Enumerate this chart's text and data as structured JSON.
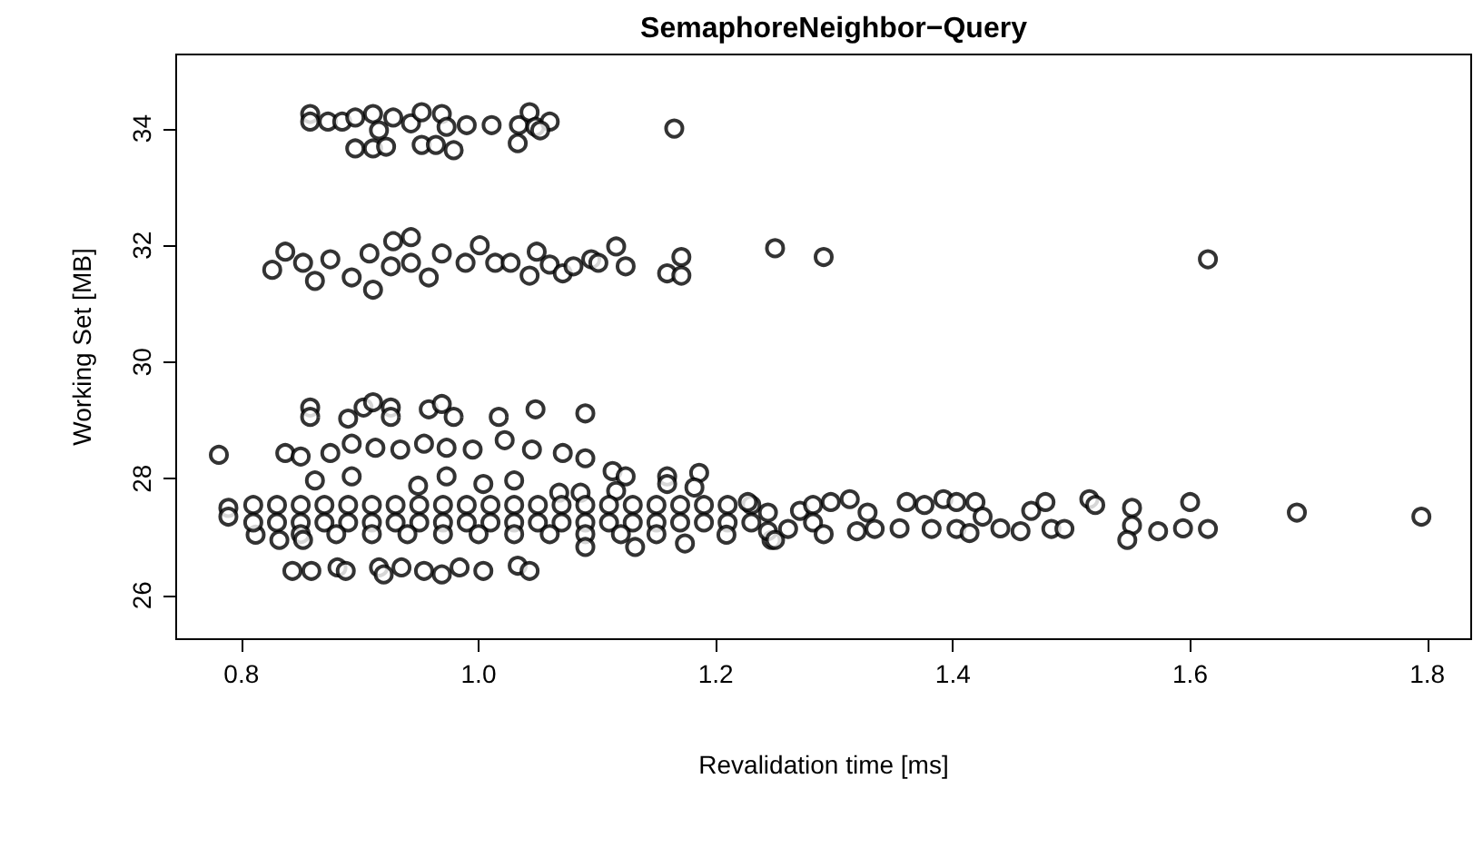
{
  "chart_data": {
    "type": "scatter",
    "title": "SemaphoreNeighbor−Query",
    "xlabel": "Revalidation time [ms]",
    "ylabel": "Working Set [MB]",
    "marker": "circle",
    "grid": false,
    "xlim": [
      0.745,
      1.837
    ],
    "ylim": [
      25.25,
      35.27
    ],
    "xticks": [
      0.8,
      {
        "value": 1,
        "label": "1.0"
      },
      1.2,
      1.4,
      1.6,
      1.8
    ],
    "yticks": [
      26,
      28,
      30,
      32,
      34
    ],
    "series": [
      {
        "color": "#000000",
        "x": [
          0.858,
          0.858,
          0.873,
          0.885,
          0.896,
          0.896,
          0.911,
          0.922,
          0.911,
          0.916,
          0.928,
          0.943,
          0.952,
          0.952,
          0.964,
          0.969,
          0.973,
          0.979,
          0.99,
          1.011,
          1.033,
          1.034,
          1.043,
          1.048,
          1.06,
          1.052,
          1.165,
          0.826,
          0.837,
          0.852,
          0.862,
          0.875,
          0.893,
          0.908,
          0.911,
          0.928,
          0.926,
          0.943,
          0.943,
          0.958,
          0.969,
          0.989,
          1.001,
          1.014,
          1.027,
          1.043,
          1.049,
          1.06,
          1.071,
          1.08,
          1.095,
          1.101,
          1.116,
          1.124,
          1.159,
          1.171,
          1.171,
          1.25,
          1.291,
          1.615,
          0.858,
          0.858,
          0.89,
          0.903,
          0.911,
          0.926,
          0.926,
          0.958,
          0.969,
          0.979,
          1.017,
          1.048,
          1.09,
          0.781,
          0.837,
          0.85,
          0.875,
          0.893,
          0.913,
          0.934,
          0.954,
          0.973,
          0.995,
          1.022,
          1.045,
          1.071,
          1.09,
          1.113,
          1.124,
          1.159,
          1.159,
          1.186,
          1.182,
          0.862,
          0.893,
          0.949,
          0.973,
          1.004,
          1.03,
          1.068,
          1.086,
          1.116,
          0.789,
          0.789,
          0.812,
          0.81,
          0.83,
          0.85,
          0.87,
          0.89,
          0.91,
          0.93,
          0.95,
          0.97,
          0.99,
          1.01,
          1.03,
          1.05,
          1.07,
          1.09,
          1.11,
          1.13,
          1.15,
          1.17,
          1.19,
          1.21,
          1.23,
          0.81,
          0.83,
          0.85,
          0.87,
          0.89,
          0.91,
          0.93,
          0.95,
          0.97,
          0.99,
          1.01,
          1.03,
          1.05,
          1.07,
          1.09,
          1.11,
          1.13,
          1.15,
          1.17,
          1.19,
          1.21,
          1.23,
          0.85,
          0.88,
          0.91,
          0.94,
          0.97,
          1.0,
          1.03,
          1.06,
          1.09,
          1.12,
          1.15,
          0.843,
          0.859,
          0.881,
          0.888,
          0.916,
          0.92,
          0.935,
          0.954,
          0.969,
          0.984,
          1.004,
          1.033,
          1.043,
          0.832,
          0.852,
          1.09,
          1.132,
          1.174,
          1.209,
          1.247,
          1.227,
          1.244,
          1.244,
          1.25,
          1.261,
          1.271,
          1.282,
          1.282,
          1.291,
          1.297,
          1.313,
          1.319,
          1.328,
          1.334,
          1.355,
          1.361,
          1.376,
          1.382,
          1.392,
          1.403,
          1.403,
          1.419,
          1.425,
          1.414,
          1.44,
          1.457,
          1.466,
          1.478,
          1.483,
          1.494,
          1.515,
          1.52,
          1.551,
          1.551,
          1.547,
          1.573,
          1.594,
          1.6,
          1.615,
          1.69,
          1.795
        ],
        "values": [
          34.25,
          34.12,
          34.12,
          34.12,
          34.19,
          33.66,
          33.66,
          33.69,
          34.25,
          33.97,
          34.19,
          34.09,
          34.28,
          33.72,
          33.72,
          34.25,
          34.03,
          33.63,
          34.06,
          34.06,
          33.75,
          34.06,
          34.28,
          34.03,
          34.12,
          33.97,
          34.0,
          31.58,
          31.89,
          31.7,
          31.39,
          31.76,
          31.45,
          31.86,
          31.24,
          32.07,
          31.64,
          32.14,
          31.7,
          31.45,
          31.86,
          31.7,
          32.0,
          31.7,
          31.7,
          31.48,
          31.89,
          31.67,
          31.52,
          31.64,
          31.76,
          31.7,
          31.98,
          31.64,
          31.52,
          31.8,
          31.48,
          31.95,
          31.8,
          31.76,
          29.22,
          29.06,
          29.03,
          29.22,
          29.31,
          29.22,
          29.06,
          29.19,
          29.28,
          29.06,
          29.06,
          29.19,
          29.12,
          28.41,
          28.44,
          28.38,
          28.44,
          28.6,
          28.53,
          28.5,
          28.6,
          28.53,
          28.5,
          28.66,
          28.5,
          28.44,
          28.35,
          28.13,
          28.04,
          28.04,
          27.91,
          28.1,
          27.85,
          27.97,
          28.04,
          27.88,
          28.04,
          27.91,
          27.97,
          27.76,
          27.76,
          27.79,
          27.5,
          27.35,
          27.04,
          27.55,
          27.55,
          27.55,
          27.55,
          27.55,
          27.55,
          27.55,
          27.55,
          27.55,
          27.55,
          27.55,
          27.55,
          27.55,
          27.55,
          27.55,
          27.55,
          27.55,
          27.55,
          27.55,
          27.55,
          27.55,
          27.55,
          27.25,
          27.25,
          27.25,
          27.25,
          27.25,
          27.25,
          27.25,
          27.25,
          27.25,
          27.25,
          27.25,
          27.25,
          27.25,
          27.25,
          27.25,
          27.25,
          27.25,
          27.25,
          27.25,
          27.25,
          27.25,
          27.25,
          27.05,
          27.05,
          27.05,
          27.05,
          27.05,
          27.05,
          27.05,
          27.05,
          27.05,
          27.05,
          27.05,
          26.42,
          26.42,
          26.48,
          26.42,
          26.48,
          26.36,
          26.48,
          26.42,
          26.36,
          26.48,
          26.42,
          26.51,
          26.42,
          26.95,
          26.95,
          26.83,
          26.83,
          26.89,
          27.04,
          26.95,
          27.6,
          27.42,
          27.1,
          26.95,
          27.14,
          27.45,
          27.55,
          27.25,
          27.05,
          27.6,
          27.65,
          27.1,
          27.42,
          27.14,
          27.15,
          27.6,
          27.55,
          27.14,
          27.65,
          27.14,
          27.6,
          27.6,
          27.35,
          27.07,
          27.15,
          27.1,
          27.45,
          27.6,
          27.14,
          27.14,
          27.65,
          27.55,
          27.5,
          27.2,
          26.95,
          27.1,
          27.15,
          27.6,
          27.14,
          27.42,
          27.35
        ]
      }
    ]
  }
}
